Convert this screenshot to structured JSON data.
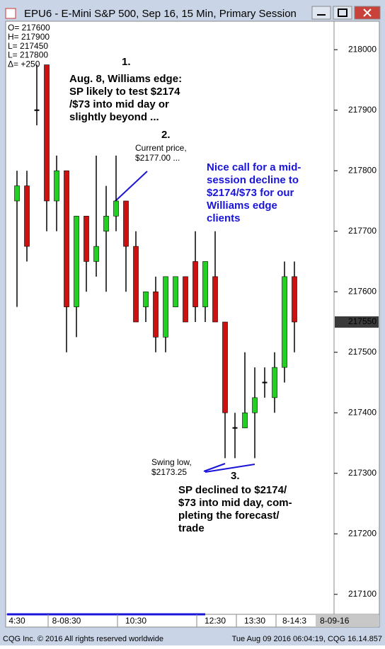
{
  "chart_data": {
    "type": "candlestick",
    "title": "EPU6 - E-Mini S&P 500, Sep 16, 15 Min, Primary Session",
    "info_lines": [
      "O= 217600",
      "H= 217900",
      "L= 217450",
      "L= 217800",
      "Δ= +250"
    ],
    "categories": [
      "4:30",
      null,
      null,
      null,
      null,
      "8-08:30",
      null,
      null,
      null,
      null,
      null,
      null,
      "10:30",
      null,
      null,
      null,
      null,
      null,
      null,
      null,
      "12:30",
      null,
      null,
      null,
      "13:30",
      null,
      null,
      null,
      "8-14:3"
    ],
    "series": [
      {
        "name": "EPU6",
        "up_color": "#22d022",
        "down_color": "#cc1111",
        "open": [
          217750,
          217775,
          217900,
          217975,
          217750,
          217800,
          217575,
          217725,
          217650,
          217700,
          217725,
          217750,
          217675,
          217575,
          217600,
          217525,
          217575,
          217625,
          217650,
          217575,
          217625,
          217550,
          217375,
          217375,
          217400,
          217450,
          217425,
          217475,
          217625
        ],
        "high": [
          217800,
          217800,
          217975,
          217975,
          217825,
          217800,
          217725,
          217725,
          217825,
          217775,
          217825,
          217750,
          217700,
          217600,
          217625,
          217625,
          217625,
          217625,
          217700,
          217650,
          217700,
          217550,
          217400,
          217500,
          217475,
          217475,
          217500,
          217650,
          217650
        ],
        "low": [
          217575,
          217650,
          217875,
          217700,
          217700,
          217500,
          217525,
          217600,
          217625,
          217600,
          217700,
          217600,
          217550,
          217550,
          217500,
          217500,
          217575,
          217550,
          217550,
          217550,
          217550,
          217325,
          217325,
          217375,
          217325,
          217425,
          217400,
          217450,
          217500
        ],
        "close": [
          217775,
          217675,
          217900,
          217750,
          217800,
          217575,
          217725,
          217650,
          217675,
          217725,
          217750,
          217675,
          217550,
          217600,
          217525,
          217625,
          217625,
          217550,
          217575,
          217650,
          217550,
          217400,
          217375,
          217400,
          217425,
          217450,
          217475,
          217625,
          217550
        ]
      }
    ],
    "ylim": [
      217067,
      218047
    ],
    "yticks": [
      217100,
      217200,
      217300,
      217400,
      217500,
      217600,
      217700,
      217800,
      217900,
      218000
    ],
    "last_price": 217550,
    "date_label": "8-09-16",
    "annotations": [
      {
        "lines": [
          "1."
        ],
        "style": "ann"
      },
      {
        "lines": [
          "Aug. 8, Williams edge:",
          "SP likely to test $2174",
          "/$73 into mid day or",
          "slightly beyond ..."
        ],
        "style": "ann"
      },
      {
        "lines": [
          "2."
        ],
        "style": "ann"
      },
      {
        "lines": [
          "Current price,",
          "$2177.00 ..."
        ],
        "style": "small"
      },
      {
        "lines": [
          "Nice call for a mid-",
          "session decline to",
          "$2174/$73 for our",
          "Williams edge",
          "clients"
        ],
        "style": "blue"
      },
      {
        "lines": [
          "Swing low,",
          "$2173.25"
        ],
        "style": "small"
      },
      {
        "lines": [
          "3."
        ],
        "style": "ann"
      },
      {
        "lines": [
          "SP declined to $2174/",
          "$73 into mid day, com-",
          "pleting the forecast/",
          "trade"
        ],
        "style": "ann"
      }
    ],
    "footer_left": "CQG Inc. © 2016 All rights reserved worldwide",
    "footer_right": "Tue Aug 09 2016 06:04:19, CQG 16.14.857"
  }
}
